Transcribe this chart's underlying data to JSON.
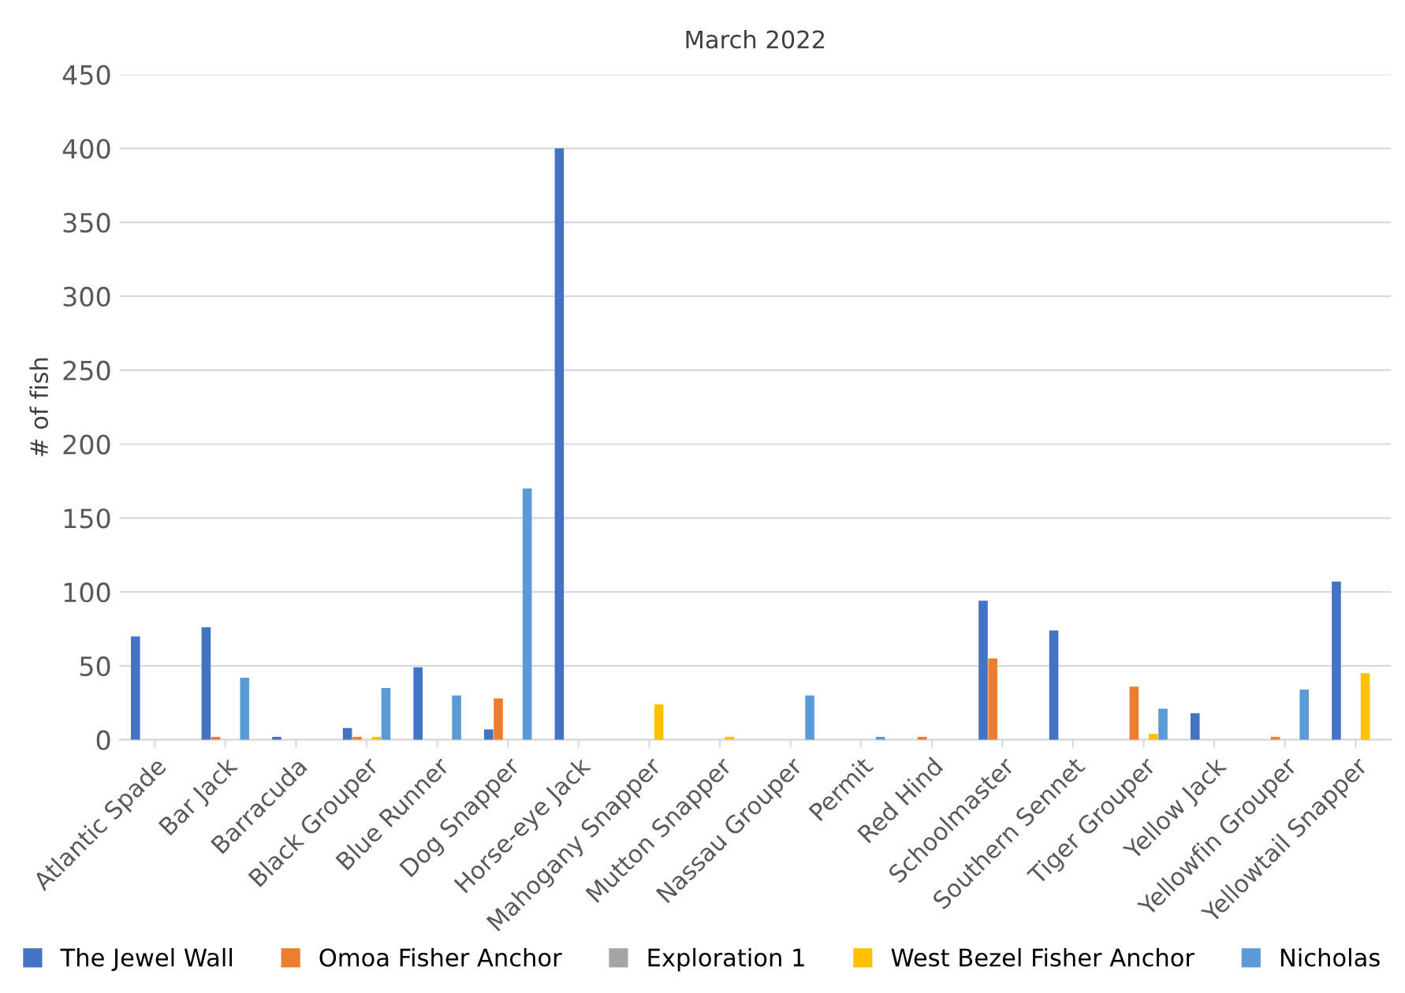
{
  "chart_data": {
    "type": "bar",
    "title": "March 2022",
    "ylabel": "# of fish",
    "categories": [
      "Atlantic Spade",
      "Bar Jack",
      "Barracuda",
      "Black Grouper",
      "Blue Runner",
      "Dog Snapper",
      "Horse-eye Jack",
      "Mahogany Snapper",
      "Mutton Snapper",
      "Nassau Grouper",
      "Permit",
      "Red Hind",
      "Schoolmaster",
      "Southern Sennet",
      "Tiger Grouper",
      "Yellow Jack",
      "Yellowfin Grouper",
      "Yellowtail Snapper"
    ],
    "series": [
      {
        "name": "The Jewel Wall",
        "color": "#4472c4",
        "values": [
          70,
          76,
          2,
          8,
          49,
          7,
          400,
          null,
          null,
          null,
          null,
          null,
          94,
          74,
          null,
          18,
          null,
          107
        ]
      },
      {
        "name": "Omoa Fisher Anchor",
        "color": "#ed7d31",
        "values": [
          null,
          2,
          null,
          2,
          null,
          28,
          null,
          null,
          null,
          null,
          null,
          2,
          55,
          null,
          36,
          null,
          2,
          null
        ]
      },
      {
        "name": "Exploration 1",
        "color": "#a5a5a5",
        "values": [
          null,
          null,
          null,
          null,
          null,
          null,
          null,
          null,
          null,
          null,
          null,
          null,
          null,
          null,
          null,
          null,
          null,
          null
        ]
      },
      {
        "name": "West Bezel Fisher Anchor",
        "color": "#ffc000",
        "values": [
          null,
          null,
          null,
          2,
          null,
          null,
          null,
          24,
          2,
          null,
          null,
          null,
          null,
          null,
          4,
          null,
          null,
          45
        ]
      },
      {
        "name": "Nicholas",
        "color": "#5b9bd5",
        "values": [
          null,
          42,
          null,
          35,
          30,
          170,
          null,
          null,
          null,
          30,
          2,
          null,
          null,
          null,
          21,
          null,
          34,
          null
        ]
      }
    ],
    "ylim": [
      0,
      450
    ],
    "yticks": [
      0,
      50,
      100,
      150,
      200,
      250,
      300,
      350,
      400,
      450
    ],
    "grid": "y",
    "legend": "bottom"
  }
}
